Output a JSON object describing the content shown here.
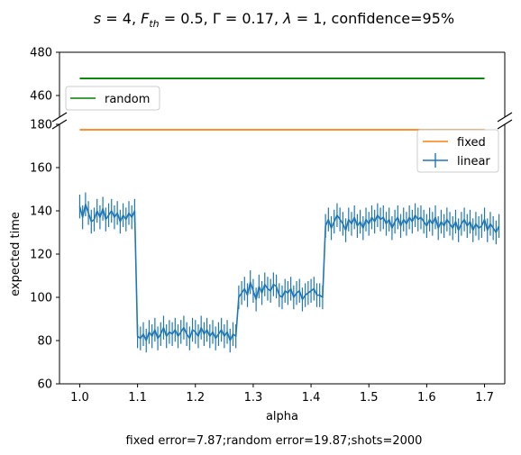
{
  "chart_data": {
    "type": "line",
    "title": "s = 4, F_th = 0.5, Γ = 0.17, λ = 1, confidence=95%",
    "title_parts": {
      "s_var": "s",
      "s_eq": " = 4, ",
      "f_var": "F",
      "f_sub": "th",
      "f_eq": " = 0.5, ",
      "gamma_var": "Γ",
      "gamma_eq": " = 0.17, ",
      "lambda_var": "λ",
      "lambda_eq": " = 1, confidence=95%"
    },
    "xlabel": "alpha",
    "ylabel": "expected time",
    "footer": "fixed error=7.87;random error=19.87;shots=2000",
    "xlim": [
      0.965,
      1.735
    ],
    "x_ticks": [
      "1.0",
      "1.1",
      "1.2",
      "1.3",
      "1.4",
      "1.5",
      "1.6",
      "1.7"
    ],
    "x_tick_values": [
      1.0,
      1.1,
      1.2,
      1.3,
      1.4,
      1.5,
      1.6,
      1.7
    ],
    "broken_y_axis": true,
    "top_panel": {
      "ylim": [
        450,
        480
      ],
      "y_ticks": [
        "460",
        "480"
      ],
      "y_tick_values": [
        460,
        480
      ]
    },
    "bottom_panel": {
      "ylim": [
        60,
        180
      ],
      "y_ticks": [
        "60",
        "80",
        "100",
        "120",
        "140",
        "160",
        "180"
      ],
      "y_tick_values": [
        60,
        80,
        100,
        120,
        140,
        160,
        180
      ]
    },
    "colors": {
      "random": "#008000",
      "fixed": "#ff7f0e",
      "linear": "#1f77b4"
    },
    "legend_top": {
      "placement": "lower-left",
      "entries": [
        "random"
      ]
    },
    "legend_bottom": {
      "placement": "upper-right",
      "entries": [
        "fixed",
        "linear"
      ]
    },
    "series": [
      {
        "name": "random",
        "panel": "top",
        "x": [
          1.0,
          1.7
        ],
        "y": [
          467.9,
          467.9
        ]
      },
      {
        "name": "fixed",
        "panel": "bottom",
        "x": [
          1.0,
          1.7
        ],
        "y": [
          177.5,
          177.5
        ]
      },
      {
        "name": "linear",
        "panel": "bottom",
        "x_start": 1.0,
        "x_step": 0.005,
        "error_bar": 5.5,
        "y": [
          142,
          137,
          143,
          139,
          135,
          136,
          140,
          137,
          141,
          136,
          138,
          140,
          137,
          139,
          135,
          138,
          136,
          139,
          137,
          140,
          82,
          81,
          83,
          80,
          84,
          82,
          85,
          81,
          83,
          86,
          82,
          84,
          83,
          85,
          82,
          84,
          86,
          83,
          81,
          85,
          84,
          82,
          86,
          83,
          85,
          82,
          84,
          81,
          83,
          85,
          82,
          84,
          80,
          83,
          82,
          100,
          102,
          104,
          101,
          107,
          103,
          99,
          105,
          102,
          106,
          104,
          103,
          106,
          105,
          101,
          100,
          103,
          102,
          104,
          100,
          102,
          103,
          99,
          101,
          102,
          103,
          104,
          101,
          101,
          100,
          133,
          136,
          132,
          135,
          138,
          136,
          134,
          131,
          136,
          134,
          137,
          133,
          135,
          132,
          136,
          134,
          137,
          135,
          138,
          136,
          137,
          134,
          136,
          132,
          135,
          137,
          133,
          136,
          134,
          137,
          135,
          138,
          136,
          137,
          135,
          133,
          136,
          134,
          137,
          132,
          135,
          133,
          136,
          134,
          132,
          135,
          131,
          134,
          136,
          133,
          135,
          131,
          134,
          132,
          133,
          136,
          131,
          134,
          132,
          130,
          133
        ]
      }
    ]
  }
}
